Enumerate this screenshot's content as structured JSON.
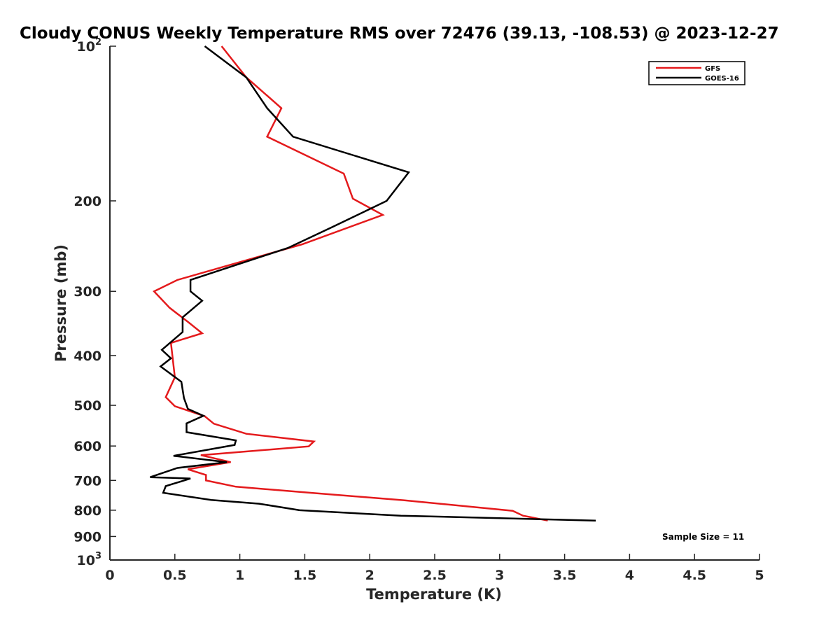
{
  "chart_data": {
    "type": "line",
    "title": "Cloudy CONUS Weekly Temperature RMS over 72476 (39.13, -108.53) @ 2023-12-27",
    "xlabel": "Temperature (K)",
    "ylabel": "Pressure (mb)",
    "xlim": [
      0,
      5
    ],
    "ylim": [
      100,
      1000
    ],
    "y_scale": "log",
    "y_reversed": true,
    "grid": false,
    "legend_position": "top-right",
    "x_ticks": [
      {
        "value": 0,
        "label": "0"
      },
      {
        "value": 0.5,
        "label": "0.5"
      },
      {
        "value": 1,
        "label": "1"
      },
      {
        "value": 1.5,
        "label": "1.5"
      },
      {
        "value": 2,
        "label": "2"
      },
      {
        "value": 2.5,
        "label": "2.5"
      },
      {
        "value": 3,
        "label": "3"
      },
      {
        "value": 3.5,
        "label": "3.5"
      },
      {
        "value": 4,
        "label": "4"
      },
      {
        "value": 4.5,
        "label": "4.5"
      },
      {
        "value": 5,
        "label": "5"
      }
    ],
    "y_ticks": [
      {
        "value": 100,
        "label": "10",
        "sup": "2"
      },
      {
        "value": 200,
        "label": "200"
      },
      {
        "value": 300,
        "label": "300"
      },
      {
        "value": 400,
        "label": "400"
      },
      {
        "value": 500,
        "label": "500"
      },
      {
        "value": 600,
        "label": "600"
      },
      {
        "value": 700,
        "label": "700"
      },
      {
        "value": 800,
        "label": "800"
      },
      {
        "value": 900,
        "label": "900"
      },
      {
        "value": 1000,
        "label": "10",
        "sup": "3"
      }
    ],
    "series": [
      {
        "name": "GFS",
        "color": "#e41a1c",
        "points": [
          [
            0.86,
            100
          ],
          [
            1.05,
            115
          ],
          [
            1.32,
            132
          ],
          [
            1.21,
            150
          ],
          [
            1.8,
            177
          ],
          [
            1.87,
            198
          ],
          [
            2.1,
            213
          ],
          [
            1.48,
            243
          ],
          [
            0.52,
            285
          ],
          [
            0.34,
            300
          ],
          [
            0.46,
            323
          ],
          [
            0.6,
            344
          ],
          [
            0.71,
            362
          ],
          [
            0.47,
            378
          ],
          [
            0.5,
            441
          ],
          [
            0.43,
            482
          ],
          [
            0.5,
            502
          ],
          [
            0.73,
            525
          ],
          [
            0.8,
            543
          ],
          [
            1.05,
            568
          ],
          [
            1.57,
            588
          ],
          [
            1.53,
            601
          ],
          [
            0.7,
            625
          ],
          [
            0.93,
            645
          ],
          [
            0.6,
            666
          ],
          [
            0.74,
            683
          ],
          [
            0.74,
            700
          ],
          [
            0.97,
            720
          ],
          [
            1.57,
            741
          ],
          [
            2.26,
            765
          ],
          [
            3.1,
            802
          ],
          [
            3.18,
            820
          ],
          [
            3.37,
            838
          ]
        ]
      },
      {
        "name": "GOES-16",
        "color": "#000000",
        "points": [
          [
            0.73,
            100
          ],
          [
            1.05,
            115
          ],
          [
            1.21,
            132
          ],
          [
            1.41,
            150
          ],
          [
            2.3,
            176
          ],
          [
            2.13,
            200
          ],
          [
            1.71,
            225
          ],
          [
            1.37,
            247
          ],
          [
            0.62,
            285
          ],
          [
            0.62,
            300
          ],
          [
            0.71,
            313
          ],
          [
            0.56,
            337
          ],
          [
            0.56,
            360
          ],
          [
            0.4,
            390
          ],
          [
            0.47,
            405
          ],
          [
            0.39,
            420
          ],
          [
            0.55,
            450
          ],
          [
            0.57,
            484
          ],
          [
            0.6,
            508
          ],
          [
            0.72,
            524
          ],
          [
            0.59,
            542
          ],
          [
            0.59,
            564
          ],
          [
            0.97,
            585
          ],
          [
            0.96,
            597
          ],
          [
            0.49,
            627
          ],
          [
            0.9,
            645
          ],
          [
            0.52,
            662
          ],
          [
            0.31,
            690
          ],
          [
            0.62,
            694
          ],
          [
            0.43,
            718
          ],
          [
            0.41,
            740
          ],
          [
            0.78,
            764
          ],
          [
            1.15,
            777
          ],
          [
            1.46,
            800
          ],
          [
            2.24,
            820
          ],
          [
            3.74,
            838
          ]
        ]
      }
    ],
    "annotation": "Sample Size = 11"
  }
}
